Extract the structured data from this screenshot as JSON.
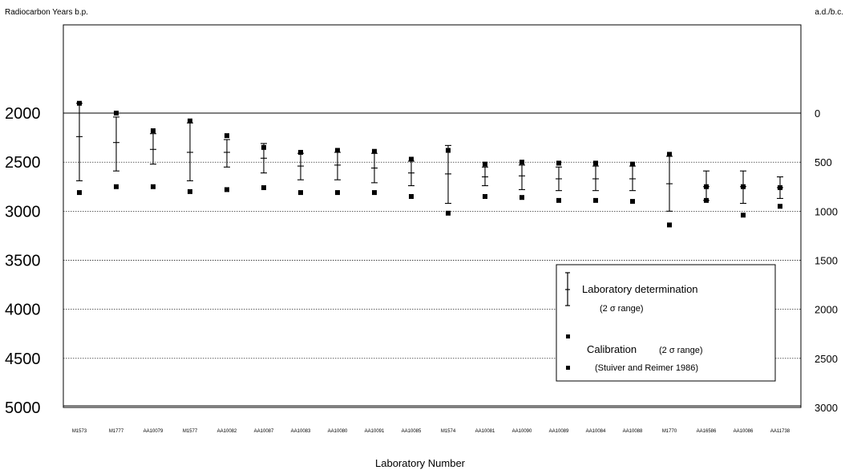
{
  "chart_data": {
    "type": "range",
    "ylabel_left": "Radiocarbon Years b.p.",
    "ylabel_right": "a.d./b.c.",
    "xlabel": "Laboratory Number",
    "left_axis": {
      "ticks": [
        2000,
        2500,
        3000,
        3500,
        4000,
        4500,
        5000
      ],
      "ylim": [
        1800,
        5000
      ]
    },
    "right_axis": {
      "ticks": [
        0,
        500,
        1000,
        1500,
        2000,
        2500,
        3000
      ]
    },
    "categories": [
      "M1573",
      "M1777",
      "AA10079",
      "M1577",
      "AA10082",
      "AA10087",
      "AA10083",
      "AA10080",
      "AA10091",
      "AA10085",
      "M1574",
      "AA10081",
      "AA10090",
      "AA10089",
      "AA10084",
      "AA10088",
      "M1770",
      "AA16586",
      "AA10086",
      "AA11738"
    ],
    "series": [
      {
        "name": "Laboratory determination (2 σ range)",
        "mid": [
          2240,
          2300,
          2370,
          2400,
          2400,
          2460,
          2540,
          2530,
          2560,
          2610,
          2620,
          2650,
          2640,
          2670,
          2670,
          2670,
          2720,
          2750,
          2750,
          2760
        ],
        "low": [
          1900,
          2040,
          2210,
          2100,
          2270,
          2310,
          2410,
          2400,
          2410,
          2490,
          2330,
          2550,
          2530,
          2550,
          2540,
          2540,
          2440,
          2590,
          2590,
          2650
        ],
        "high": [
          2690,
          2590,
          2520,
          2690,
          2550,
          2610,
          2680,
          2680,
          2710,
          2740,
          2920,
          2740,
          2780,
          2790,
          2790,
          2790,
          3000,
          2890,
          2920,
          2870
        ]
      },
      {
        "name": "Calibration (2 σ range)",
        "high_bc": [
          -100,
          0,
          180,
          80,
          230,
          350,
          400,
          380,
          390,
          470,
          380,
          520,
          500,
          510,
          510,
          520,
          420,
          750,
          750,
          760
        ],
        "low_bc": [
          810,
          750,
          750,
          800,
          780,
          760,
          810,
          810,
          810,
          850,
          1020,
          850,
          860,
          890,
          890,
          900,
          1140,
          890,
          1040,
          950
        ]
      }
    ],
    "legend": {
      "line1": "Laboratory determination",
      "line2": "(2 σ range)",
      "line3": "Calibration",
      "line3_sub": "(2 σ range)",
      "line4": "(Stuiver and Reimer 1986)"
    },
    "grid": true,
    "legend_position": "bottom-right"
  }
}
